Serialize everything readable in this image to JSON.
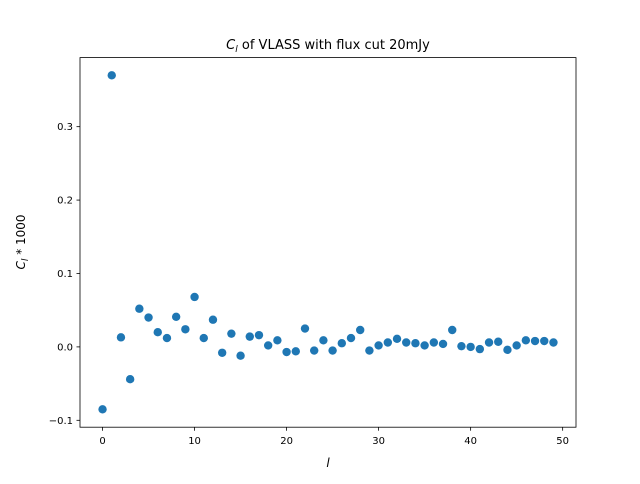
{
  "chart_data": {
    "type": "scatter",
    "title_main": "C",
    "title_sub": "l",
    "title_rest": " of VLASS with flux cut 20mJy",
    "xlabel": "l",
    "ylabel_main": "C",
    "ylabel_sub": "l",
    "ylabel_rest": " * 1000",
    "xlim": [
      -2.45,
      51.45
    ],
    "ylim": [
      -0.1094,
      0.3941
    ],
    "xticks": [
      0,
      10,
      20,
      30,
      40,
      50
    ],
    "xtick_labels": [
      "0",
      "10",
      "20",
      "30",
      "40",
      "50"
    ],
    "yticks": [
      -0.1,
      0.0,
      0.1,
      0.2,
      0.3
    ],
    "ytick_labels": [
      "−0.1",
      "0.0",
      "0.1",
      "0.2",
      "0.3"
    ],
    "grid": false,
    "marker_color": "#1f77b4",
    "series": [
      {
        "x": [
          0,
          1,
          2,
          3,
          4,
          5,
          6,
          7,
          8,
          9,
          10,
          11,
          12,
          13,
          14,
          15,
          16,
          17,
          18,
          19,
          20,
          21,
          22,
          23,
          24,
          25,
          26,
          27,
          28,
          29,
          30,
          31,
          32,
          33,
          34,
          35,
          36,
          37,
          38,
          39,
          40,
          41,
          42,
          43,
          44,
          45,
          46,
          47,
          48,
          49
        ],
        "y": [
          -0.085,
          0.37,
          0.013,
          -0.044,
          0.052,
          0.04,
          0.02,
          0.012,
          0.041,
          0.024,
          0.068,
          0.012,
          0.037,
          -0.008,
          0.018,
          -0.012,
          0.014,
          0.016,
          0.002,
          0.009,
          -0.007,
          -0.006,
          0.025,
          -0.005,
          0.009,
          -0.005,
          0.005,
          0.012,
          0.023,
          -0.005,
          0.002,
          0.006,
          0.011,
          0.006,
          0.005,
          0.002,
          0.006,
          0.004,
          0.023,
          0.001,
          0.0,
          -0.003,
          0.006,
          0.007,
          -0.004,
          0.002,
          0.009,
          0.008,
          0.008,
          0.006
        ]
      }
    ]
  }
}
